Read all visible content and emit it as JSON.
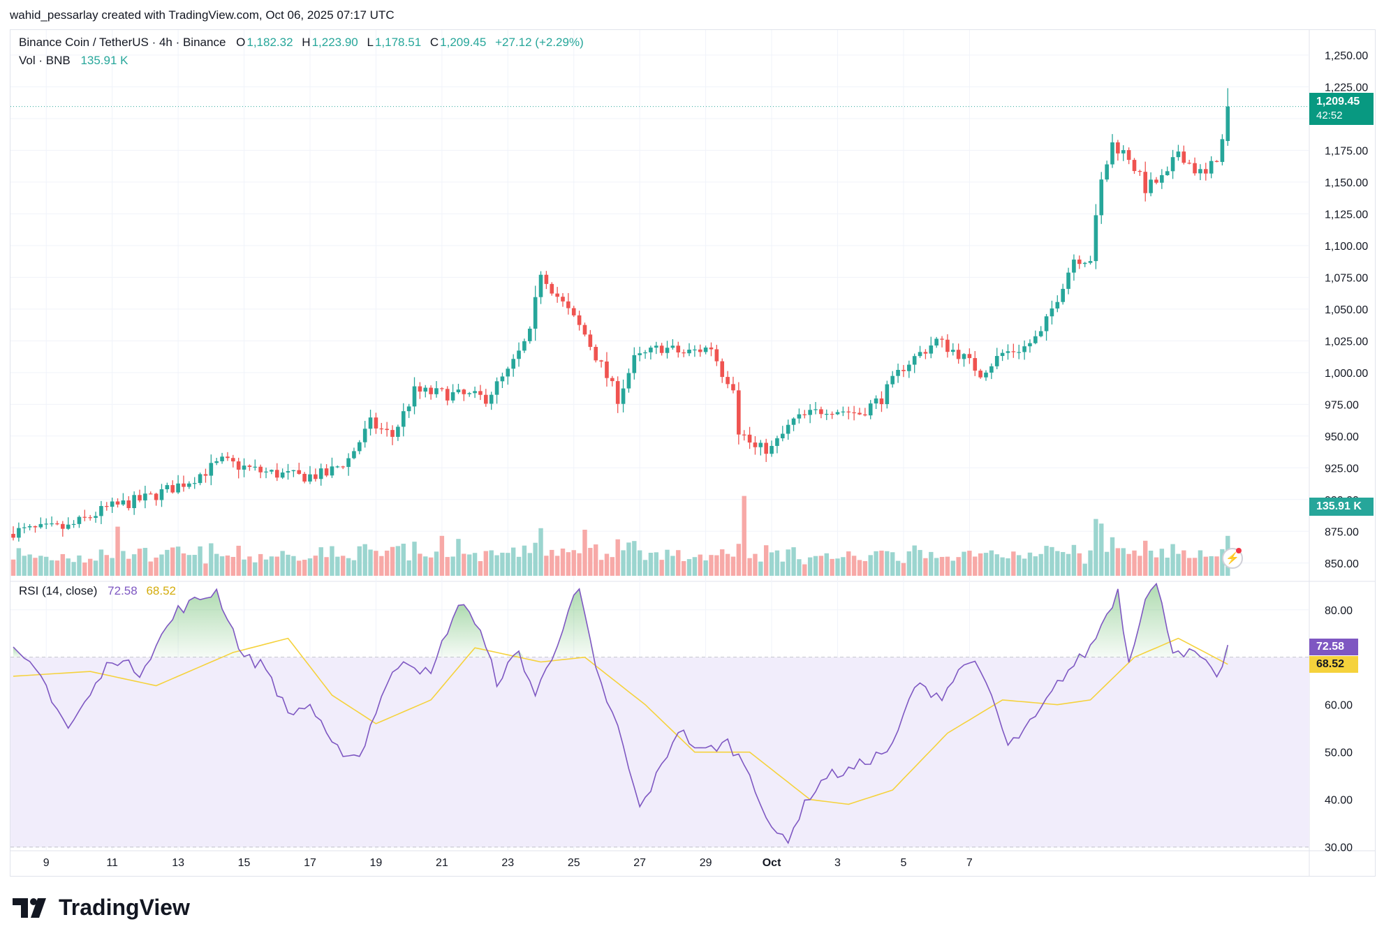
{
  "header": {
    "credit": "wahid_pessarlay created with TradingView.com, Oct 06, 2025 07:17 UTC"
  },
  "legend": {
    "symbol": "Binance Coin / TetherUS · 4h · Binance",
    "o_label": "O",
    "o_value": "1,182.32",
    "h_label": "H",
    "h_value": "1,223.90",
    "l_label": "L",
    "l_value": "1,178.51",
    "c_label": "C",
    "c_value": "1,209.45",
    "change": "+27.12 (+2.29%)",
    "vol_label": "Vol · BNB",
    "vol_value": "135.91 K",
    "rsi_label": "RSI (14, close)",
    "rsi_value": "72.58",
    "rsi_ma_value": "68.52"
  },
  "tags": {
    "price": "1,209.45",
    "countdown": "42:52",
    "volume": "135.91 K",
    "rsi": "72.58",
    "rsi_ma": "68.52"
  },
  "colors": {
    "up": "#26a69a",
    "down": "#ef5350",
    "up_vol": "#9bd5cf",
    "down_vol": "#f7a9a7",
    "rsi_line": "#7e57c2",
    "rsi_ma": "#f5d23c",
    "rsi_band": "#f1edfb",
    "grid": "#f0f3fa"
  },
  "branding": {
    "logo_text": "TradingView",
    "logo_icon": "tradingview-logo-icon"
  },
  "chart_data": [
    {
      "type": "candlestick",
      "title": "Binance Coin / TetherUS · 4h · Binance",
      "x_tick_labels": [
        "9",
        "11",
        "13",
        "15",
        "17",
        "19",
        "21",
        "23",
        "25",
        "27",
        "29",
        "Oct",
        "3",
        "5",
        "7"
      ],
      "y_tick_labels": [
        "1,250.00",
        "1,225.00",
        "1,200.00",
        "1,175.00",
        "1,150.00",
        "1,125.00",
        "1,100.00",
        "1,075.00",
        "1,050.00",
        "1,025.00",
        "1,000.00",
        "975.00",
        "950.00",
        "925.00",
        "900.00",
        "875.00",
        "850.00"
      ],
      "ylim": [
        840,
        1262
      ],
      "grid": true,
      "key_points": [
        [
          0,
          875
        ],
        [
          10,
          878
        ],
        [
          17,
          893
        ],
        [
          25,
          902
        ],
        [
          32,
          915
        ],
        [
          38,
          930
        ],
        [
          45,
          922
        ],
        [
          52,
          918
        ],
        [
          57,
          920
        ],
        [
          61,
          932
        ],
        [
          65,
          960
        ],
        [
          69,
          950
        ],
        [
          73,
          985
        ],
        [
          79,
          983
        ],
        [
          86,
          980
        ],
        [
          90,
          1000
        ],
        [
          94,
          1030
        ],
        [
          96,
          1080
        ],
        [
          99,
          1060
        ],
        [
          104,
          1030
        ],
        [
          107,
          1005
        ],
        [
          110,
          980
        ],
        [
          113,
          1010
        ],
        [
          118,
          1020
        ],
        [
          122,
          1015
        ],
        [
          127,
          1020
        ],
        [
          129,
          1000
        ],
        [
          131,
          990
        ],
        [
          132,
          955
        ],
        [
          135,
          940
        ],
        [
          138,
          940
        ],
        [
          142,
          962
        ],
        [
          148,
          972
        ],
        [
          154,
          968
        ],
        [
          158,
          980
        ],
        [
          162,
          1005
        ],
        [
          168,
          1025
        ],
        [
          172,
          1015
        ],
        [
          176,
          1000
        ],
        [
          180,
          1015
        ],
        [
          184,
          1020
        ],
        [
          187,
          1030
        ],
        [
          190,
          1060
        ],
        [
          193,
          1090
        ],
        [
          196,
          1090
        ],
        [
          198,
          1150
        ],
        [
          200,
          1180
        ],
        [
          203,
          1170
        ],
        [
          206,
          1145
        ],
        [
          210,
          1155
        ],
        [
          212,
          1175
        ],
        [
          215,
          1160
        ],
        [
          217,
          1155
        ],
        [
          219,
          1170
        ],
        [
          220,
          1182
        ],
        [
          221,
          1209.45
        ]
      ],
      "last": {
        "open": 1182.32,
        "high": 1223.9,
        "low": 1178.51,
        "close": 1209.45
      }
    },
    {
      "type": "bar",
      "title": "Vol · BNB",
      "last_value": 135.91,
      "unit": "K",
      "spikes": [
        [
          19,
          3.2
        ],
        [
          78,
          2.6
        ],
        [
          81,
          2.4
        ],
        [
          96,
          3.1
        ],
        [
          104,
          3.0
        ],
        [
          133,
          5.2
        ],
        [
          197,
          3.7
        ],
        [
          198,
          3.4
        ],
        [
          202,
          1.8
        ],
        [
          221,
          2.6
        ]
      ]
    },
    {
      "type": "line",
      "title": "RSI (14, close)",
      "y_tick_labels": [
        "80.00",
        "60.00",
        "50.00",
        "40.00",
        "30.00"
      ],
      "ylim": [
        29.5,
        86
      ],
      "bands": [
        30,
        70
      ],
      "midline": 50,
      "key_points": [
        [
          0,
          71
        ],
        [
          5,
          66
        ],
        [
          10,
          55
        ],
        [
          14,
          62
        ],
        [
          18,
          70
        ],
        [
          23,
          67
        ],
        [
          30,
          80
        ],
        [
          37,
          84
        ],
        [
          42,
          70
        ],
        [
          46,
          68
        ],
        [
          50,
          58
        ],
        [
          54,
          60
        ],
        [
          58,
          51
        ],
        [
          63,
          49
        ],
        [
          67,
          62
        ],
        [
          71,
          70
        ],
        [
          76,
          66
        ],
        [
          79,
          76
        ],
        [
          82,
          82
        ],
        [
          85,
          75
        ],
        [
          88,
          65
        ],
        [
          92,
          71
        ],
        [
          95,
          62
        ],
        [
          98,
          70
        ],
        [
          101,
          80
        ],
        [
          103,
          84
        ],
        [
          106,
          67
        ],
        [
          110,
          55
        ],
        [
          114,
          38
        ],
        [
          118,
          47
        ],
        [
          121,
          55
        ],
        [
          125,
          50
        ],
        [
          130,
          52
        ],
        [
          134,
          46
        ],
        [
          138,
          33
        ],
        [
          141,
          32
        ],
        [
          145,
          41
        ],
        [
          148,
          45
        ],
        [
          152,
          46
        ],
        [
          155,
          48
        ],
        [
          160,
          51
        ],
        [
          164,
          64
        ],
        [
          169,
          62
        ],
        [
          174,
          70
        ],
        [
          178,
          62
        ],
        [
          181,
          51
        ],
        [
          186,
          57
        ],
        [
          191,
          66
        ],
        [
          196,
          72
        ],
        [
          201,
          84
        ],
        [
          203,
          69
        ],
        [
          206,
          83
        ],
        [
          208,
          85
        ],
        [
          211,
          72
        ],
        [
          216,
          70
        ],
        [
          219,
          65
        ],
        [
          221,
          72.58
        ]
      ],
      "ma_key_points": [
        [
          0,
          66
        ],
        [
          14,
          67
        ],
        [
          26,
          64
        ],
        [
          40,
          71
        ],
        [
          50,
          74
        ],
        [
          58,
          62
        ],
        [
          66,
          56
        ],
        [
          76,
          61
        ],
        [
          84,
          72
        ],
        [
          96,
          69
        ],
        [
          104,
          70
        ],
        [
          115,
          60
        ],
        [
          124,
          50
        ],
        [
          134,
          50
        ],
        [
          145,
          40
        ],
        [
          152,
          39
        ],
        [
          160,
          42
        ],
        [
          170,
          54
        ],
        [
          180,
          61
        ],
        [
          190,
          60
        ],
        [
          196,
          61
        ],
        [
          204,
          70
        ],
        [
          212,
          74
        ],
        [
          221,
          68.52
        ]
      ]
    }
  ]
}
